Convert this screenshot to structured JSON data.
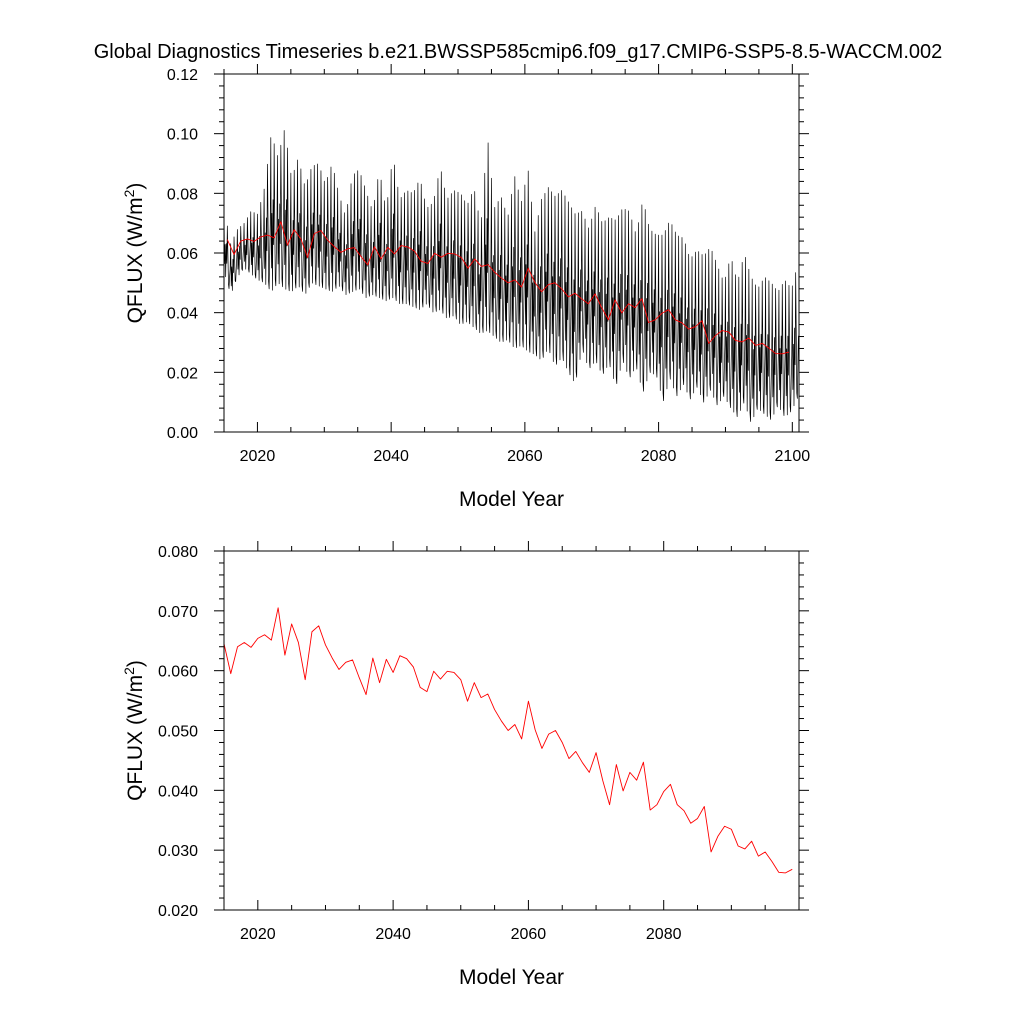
{
  "title": "Global Diagnostics Timeseries b.e21.BWSSP585cmip6.f09_g17.CMIP6-SSP5-8.5-WACCM.002",
  "colors": {
    "monthly": "#000000",
    "annual": "#ff0000",
    "axes": "#000000",
    "background": "#ffffff"
  },
  "chart_data": [
    {
      "type": "line",
      "name": "monthly-and-annual",
      "xlabel": "Model Year",
      "ylabel_main": "QFLUX (W/m",
      "ylabel_sup": "2",
      "ylabel_close": ")",
      "xlim": [
        2015,
        2101
      ],
      "ylim": [
        0.0,
        0.12
      ],
      "xticks": [
        2020,
        2040,
        2060,
        2080,
        2100
      ],
      "xtick_labels": [
        "2020",
        "2040",
        "2060",
        "2080",
        "2100"
      ],
      "yticks": [
        0.0,
        0.02,
        0.04,
        0.06,
        0.08,
        0.1,
        0.12
      ],
      "ytick_labels": [
        "0.00",
        "0.02",
        "0.04",
        "0.06",
        "0.08",
        "0.10",
        "0.12"
      ],
      "series": [
        {
          "name": "monthly",
          "color": "#000000",
          "resolution": "monthly",
          "x_start": 2015,
          "x_end": 2100.9,
          "annual_peak": [
            0.075,
            0.063,
            0.068,
            0.07,
            0.074,
            0.073,
            0.082,
            0.1,
            0.092,
            0.102,
            0.085,
            0.092,
            0.082,
            0.089,
            0.09,
            0.083,
            0.09,
            0.08,
            0.072,
            0.086,
            0.088,
            0.081,
            0.074,
            0.088,
            0.074,
            0.093,
            0.078,
            0.081,
            0.08,
            0.085,
            0.075,
            0.077,
            0.089,
            0.078,
            0.081,
            0.08,
            0.076,
            0.082,
            0.069,
            0.099,
            0.075,
            0.079,
            0.072,
            0.086,
            0.077,
            0.088,
            0.067,
            0.078,
            0.082,
            0.079,
            0.081,
            0.077,
            0.073,
            0.074,
            0.068,
            0.076,
            0.07,
            0.072,
            0.071,
            0.075,
            0.074,
            0.066,
            0.078,
            0.068,
            0.066,
            0.066,
            0.071,
            0.066,
            0.065,
            0.058,
            0.061,
            0.059,
            0.062,
            0.056,
            0.05,
            0.059,
            0.05,
            0.06,
            0.052,
            0.048,
            0.052,
            0.05,
            0.047,
            0.051,
            0.048,
            0.057
          ],
          "annual_trough": [
            0.054,
            0.046,
            0.052,
            0.055,
            0.053,
            0.051,
            0.05,
            0.047,
            0.05,
            0.048,
            0.047,
            0.049,
            0.046,
            0.05,
            0.049,
            0.048,
            0.047,
            0.049,
            0.046,
            0.047,
            0.048,
            0.045,
            0.046,
            0.045,
            0.044,
            0.045,
            0.043,
            0.043,
            0.042,
            0.041,
            0.043,
            0.04,
            0.041,
            0.038,
            0.039,
            0.036,
            0.037,
            0.035,
            0.033,
            0.034,
            0.032,
            0.03,
            0.031,
            0.028,
            0.029,
            0.027,
            0.026,
            0.024,
            0.028,
            0.022,
            0.025,
            0.02,
            0.016,
            0.028,
            0.021,
            0.024,
            0.019,
            0.023,
            0.015,
            0.024,
            0.018,
            0.022,
            0.013,
            0.02,
            0.019,
            0.01,
            0.018,
            0.012,
            0.016,
            0.011,
            0.015,
            0.01,
            0.014,
            0.009,
            0.012,
            0.008,
            0.005,
            0.01,
            0.003,
            0.008,
            0.006,
            0.004,
            0.009,
            0.005,
            0.007,
            0.012
          ]
        },
        {
          "name": "annual-mean",
          "color": "#ff0000",
          "resolution": "annual",
          "x_start": 2015.5,
          "values": [
            0.0645,
            0.0595,
            0.064,
            0.0647,
            0.0639,
            0.0654,
            0.066,
            0.0651,
            0.0705,
            0.0626,
            0.0678,
            0.0647,
            0.0585,
            0.0665,
            0.0675,
            0.0643,
            0.0621,
            0.0602,
            0.0614,
            0.0618,
            0.0588,
            0.056,
            0.0621,
            0.058,
            0.0619,
            0.0597,
            0.0625,
            0.062,
            0.0606,
            0.0572,
            0.0565,
            0.0599,
            0.0586,
            0.0599,
            0.0597,
            0.0585,
            0.0549,
            0.058,
            0.0555,
            0.0561,
            0.0535,
            0.0516,
            0.05,
            0.051,
            0.0486,
            0.0549,
            0.0501,
            0.047,
            0.0494,
            0.05,
            0.048,
            0.0453,
            0.0465,
            0.0446,
            0.043,
            0.0463,
            0.0416,
            0.0376,
            0.0443,
            0.0399,
            0.043,
            0.0417,
            0.0447,
            0.0367,
            0.0376,
            0.0398,
            0.041,
            0.0376,
            0.0366,
            0.0345,
            0.0353,
            0.0373,
            0.0297,
            0.0323,
            0.034,
            0.0335,
            0.0307,
            0.0302,
            0.0315,
            0.029,
            0.0297,
            0.0281,
            0.0263,
            0.0262,
            0.0268
          ]
        }
      ]
    },
    {
      "type": "line",
      "name": "annual",
      "xlabel": "Model Year",
      "ylabel_main": "QFLUX (W/m",
      "ylabel_sup": "2",
      "ylabel_close": ")",
      "xlim": [
        2015,
        2100
      ],
      "ylim": [
        0.02,
        0.08
      ],
      "xticks": [
        2020,
        2040,
        2060,
        2080
      ],
      "xtick_labels": [
        "2020",
        "2040",
        "2060",
        "2080"
      ],
      "yticks": [
        0.02,
        0.03,
        0.04,
        0.05,
        0.06,
        0.07,
        0.08
      ],
      "ytick_labels": [
        "0.020",
        "0.030",
        "0.040",
        "0.050",
        "0.060",
        "0.070",
        "0.080"
      ],
      "series": [
        {
          "name": "annual-mean",
          "color": "#ff0000",
          "resolution": "annual",
          "x_start": 2015,
          "values": [
            0.0645,
            0.0595,
            0.064,
            0.0647,
            0.0639,
            0.0654,
            0.066,
            0.0651,
            0.0705,
            0.0626,
            0.0678,
            0.0647,
            0.0585,
            0.0665,
            0.0675,
            0.0643,
            0.0621,
            0.0602,
            0.0614,
            0.0618,
            0.0588,
            0.056,
            0.0621,
            0.058,
            0.0619,
            0.0597,
            0.0625,
            0.062,
            0.0606,
            0.0572,
            0.0565,
            0.0599,
            0.0586,
            0.0599,
            0.0597,
            0.0585,
            0.0549,
            0.058,
            0.0555,
            0.0561,
            0.0535,
            0.0516,
            0.05,
            0.051,
            0.0486,
            0.0549,
            0.0501,
            0.047,
            0.0494,
            0.05,
            0.048,
            0.0453,
            0.0465,
            0.0446,
            0.043,
            0.0463,
            0.0416,
            0.0376,
            0.0443,
            0.0399,
            0.043,
            0.0417,
            0.0447,
            0.0367,
            0.0376,
            0.0398,
            0.041,
            0.0376,
            0.0366,
            0.0345,
            0.0353,
            0.0373,
            0.0297,
            0.0323,
            0.034,
            0.0335,
            0.0307,
            0.0302,
            0.0315,
            0.029,
            0.0297,
            0.0281,
            0.0263,
            0.0262,
            0.0268
          ]
        }
      ]
    }
  ]
}
